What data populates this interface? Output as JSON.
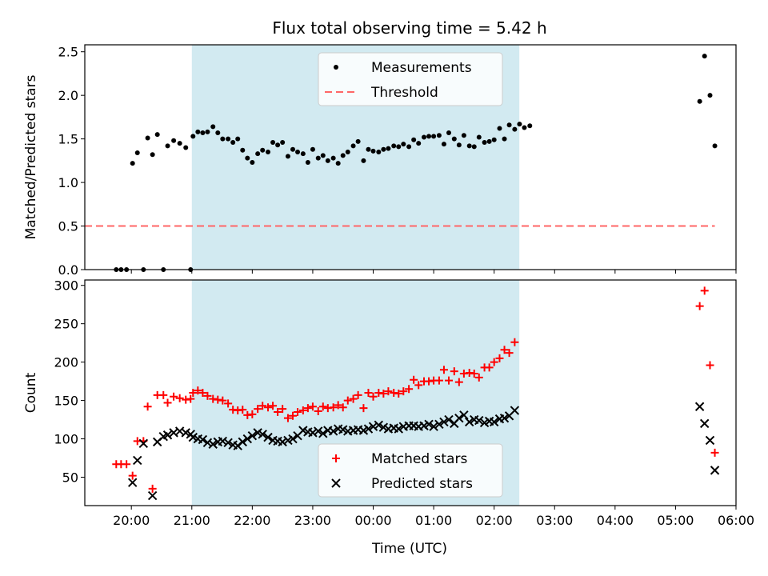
{
  "figure": {
    "title": "Flux total observing time = 5.42 h",
    "xlabel": "Time (UTC)"
  },
  "colors": {
    "shade": "#add8e6",
    "measurements": "#000000",
    "threshold": "#ff6666",
    "matched": "#ff0000",
    "predicted": "#000000"
  },
  "chart_data": [
    {
      "type": "scatter",
      "panel": "top",
      "title": "Flux total observing time = 5.42 h",
      "xlabel": "",
      "ylabel": "Matched/Predicted stars",
      "x_unit": "hours after 20:00 UTC",
      "xlim": [
        -0.77,
        10.0
      ],
      "ylim": [
        0,
        2.58
      ],
      "xticks": [
        "20:00",
        "21:00",
        "22:00",
        "23:00",
        "00:00",
        "01:00",
        "02:00",
        "03:00",
        "04:00",
        "05:00",
        "06:00"
      ],
      "yticks": [
        "0.0",
        "0.5",
        "1.0",
        "1.5",
        "2.0",
        "2.5"
      ],
      "ytick_values": [
        0,
        0.5,
        1.0,
        1.5,
        2.0,
        2.5
      ],
      "shaded_interval": [
        "21:00",
        "02:25"
      ],
      "legend_position": "upper-center",
      "series": [
        {
          "name": "Measurements",
          "marker": "dot",
          "points": [
            [
              -0.25,
              0
            ],
            [
              -0.17,
              0
            ],
            [
              -0.08,
              0
            ],
            [
              0.02,
              1.22
            ],
            [
              0.1,
              1.34
            ],
            [
              0.2,
              0
            ],
            [
              0.27,
              1.51
            ],
            [
              0.35,
              1.32
            ],
            [
              0.43,
              1.55
            ],
            [
              0.53,
              0
            ],
            [
              0.6,
              1.42
            ],
            [
              0.7,
              1.48
            ],
            [
              0.8,
              1.45
            ],
            [
              0.9,
              1.4
            ],
            [
              0.98,
              0
            ],
            [
              1.02,
              1.53
            ],
            [
              1.1,
              1.58
            ],
            [
              1.18,
              1.57
            ],
            [
              1.26,
              1.58
            ],
            [
              1.35,
              1.64
            ],
            [
              1.43,
              1.57
            ],
            [
              1.51,
              1.5
            ],
            [
              1.6,
              1.5
            ],
            [
              1.68,
              1.46
            ],
            [
              1.76,
              1.5
            ],
            [
              1.84,
              1.37
            ],
            [
              1.92,
              1.28
            ],
            [
              2.0,
              1.23
            ],
            [
              2.09,
              1.33
            ],
            [
              2.17,
              1.37
            ],
            [
              2.26,
              1.35
            ],
            [
              2.34,
              1.46
            ],
            [
              2.42,
              1.43
            ],
            [
              2.5,
              1.46
            ],
            [
              2.59,
              1.3
            ],
            [
              2.67,
              1.38
            ],
            [
              2.75,
              1.35
            ],
            [
              2.84,
              1.33
            ],
            [
              2.92,
              1.23
            ],
            [
              3.0,
              1.38
            ],
            [
              3.09,
              1.28
            ],
            [
              3.17,
              1.31
            ],
            [
              3.25,
              1.25
            ],
            [
              3.34,
              1.28
            ],
            [
              3.42,
              1.22
            ],
            [
              3.5,
              1.31
            ],
            [
              3.58,
              1.35
            ],
            [
              3.67,
              1.42
            ],
            [
              3.75,
              1.47
            ],
            [
              3.84,
              1.25
            ],
            [
              3.92,
              1.38
            ],
            [
              4.0,
              1.36
            ],
            [
              4.09,
              1.35
            ],
            [
              4.17,
              1.38
            ],
            [
              4.25,
              1.39
            ],
            [
              4.34,
              1.42
            ],
            [
              4.42,
              1.41
            ],
            [
              4.5,
              1.44
            ],
            [
              4.59,
              1.41
            ],
            [
              4.67,
              1.49
            ],
            [
              4.75,
              1.45
            ],
            [
              4.84,
              1.52
            ],
            [
              4.92,
              1.53
            ],
            [
              5.0,
              1.53
            ],
            [
              5.09,
              1.54
            ],
            [
              5.17,
              1.44
            ],
            [
              5.25,
              1.57
            ],
            [
              5.34,
              1.5
            ],
            [
              5.42,
              1.43
            ],
            [
              5.5,
              1.54
            ],
            [
              5.59,
              1.42
            ],
            [
              5.67,
              1.41
            ],
            [
              5.75,
              1.52
            ],
            [
              5.84,
              1.46
            ],
            [
              5.92,
              1.47
            ],
            [
              6.0,
              1.49
            ],
            [
              6.09,
              1.62
            ],
            [
              6.17,
              1.5
            ],
            [
              6.25,
              1.66
            ],
            [
              6.34,
              1.61
            ],
            [
              6.42,
              1.67
            ],
            [
              6.5,
              1.63
            ],
            [
              6.59,
              1.65
            ],
            [
              9.4,
              1.93
            ],
            [
              9.48,
              2.45
            ],
            [
              9.57,
              2.0
            ],
            [
              9.65,
              1.42
            ]
          ]
        },
        {
          "name": "Threshold",
          "marker": "dashed-line",
          "points": [
            [
              -0.77,
              0.5
            ],
            [
              9.65,
              0.5
            ]
          ]
        }
      ]
    },
    {
      "type": "scatter",
      "panel": "bottom",
      "xlabel": "Time (UTC)",
      "ylabel": "Count",
      "x_unit": "hours after 20:00 UTC",
      "xlim": [
        -0.77,
        10.0
      ],
      "ylim": [
        13,
        307
      ],
      "xticks": [
        "20:00",
        "21:00",
        "22:00",
        "23:00",
        "00:00",
        "01:00",
        "02:00",
        "03:00",
        "04:00",
        "05:00",
        "06:00"
      ],
      "yticks": [
        "50",
        "100",
        "150",
        "200",
        "250",
        "300"
      ],
      "ytick_values": [
        50,
        100,
        150,
        200,
        250,
        300
      ],
      "shaded_interval": [
        "21:00",
        "02:25"
      ],
      "legend_position": "lower-center",
      "series": [
        {
          "name": "Matched stars",
          "marker": "plus",
          "points": [
            [
              -0.25,
              67
            ],
            [
              -0.17,
              67
            ],
            [
              -0.08,
              67
            ],
            [
              0.02,
              52
            ],
            [
              0.1,
              97
            ],
            [
              0.2,
              97
            ],
            [
              0.27,
              142
            ],
            [
              0.35,
              35
            ],
            [
              0.43,
              157
            ],
            [
              0.53,
              157
            ],
            [
              0.6,
              147
            ],
            [
              0.7,
              155
            ],
            [
              0.8,
              153
            ],
            [
              0.9,
              151
            ],
            [
              0.98,
              152
            ],
            [
              1.02,
              160
            ],
            [
              1.1,
              163
            ],
            [
              1.18,
              160
            ],
            [
              1.26,
              156
            ],
            [
              1.35,
              152
            ],
            [
              1.43,
              151
            ],
            [
              1.51,
              150
            ],
            [
              1.6,
              146
            ],
            [
              1.68,
              138
            ],
            [
              1.76,
              137
            ],
            [
              1.84,
              138
            ],
            [
              1.92,
              131
            ],
            [
              2.0,
              132
            ],
            [
              2.09,
              139
            ],
            [
              2.17,
              143
            ],
            [
              2.26,
              141
            ],
            [
              2.34,
              143
            ],
            [
              2.42,
              135
            ],
            [
              2.5,
              139
            ],
            [
              2.59,
              127
            ],
            [
              2.67,
              130
            ],
            [
              2.75,
              135
            ],
            [
              2.84,
              137
            ],
            [
              2.92,
              140
            ],
            [
              3.0,
              142
            ],
            [
              3.09,
              136
            ],
            [
              3.17,
              142
            ],
            [
              3.25,
              140
            ],
            [
              3.34,
              141
            ],
            [
              3.42,
              144
            ],
            [
              3.5,
              141
            ],
            [
              3.58,
              150
            ],
            [
              3.67,
              152
            ],
            [
              3.75,
              157
            ],
            [
              3.84,
              140
            ],
            [
              3.92,
              160
            ],
            [
              4.0,
              155
            ],
            [
              4.09,
              160
            ],
            [
              4.17,
              159
            ],
            [
              4.25,
              162
            ],
            [
              4.34,
              160
            ],
            [
              4.42,
              159
            ],
            [
              4.5,
              162
            ],
            [
              4.59,
              165
            ],
            [
              4.67,
              177
            ],
            [
              4.75,
              170
            ],
            [
              4.84,
              175
            ],
            [
              4.92,
              175
            ],
            [
              5.0,
              176
            ],
            [
              5.09,
              176
            ],
            [
              5.17,
              190
            ],
            [
              5.25,
              176
            ],
            [
              5.34,
              188
            ],
            [
              5.42,
              174
            ],
            [
              5.5,
              185
            ],
            [
              5.59,
              186
            ],
            [
              5.67,
              185
            ],
            [
              5.75,
              180
            ],
            [
              5.84,
              193
            ],
            [
              5.92,
              193
            ],
            [
              6.0,
              200
            ],
            [
              6.09,
              205
            ],
            [
              6.17,
              216
            ],
            [
              6.25,
              212
            ],
            [
              6.34,
              226
            ],
            [
              9.4,
              273
            ],
            [
              9.48,
              293
            ],
            [
              9.57,
              196
            ],
            [
              9.65,
              82
            ]
          ]
        },
        {
          "name": "Predicted stars",
          "marker": "x",
          "points": [
            [
              0.02,
              43
            ],
            [
              0.1,
              72
            ],
            [
              0.2,
              94
            ],
            [
              0.35,
              26
            ],
            [
              0.43,
              96
            ],
            [
              0.53,
              103
            ],
            [
              0.6,
              105
            ],
            [
              0.7,
              108
            ],
            [
              0.8,
              110
            ],
            [
              0.9,
              108
            ],
            [
              0.98,
              106
            ],
            [
              1.02,
              102
            ],
            [
              1.1,
              100
            ],
            [
              1.18,
              99
            ],
            [
              1.26,
              95
            ],
            [
              1.35,
              93
            ],
            [
              1.43,
              96
            ],
            [
              1.51,
              97
            ],
            [
              1.6,
              95
            ],
            [
              1.68,
              92
            ],
            [
              1.76,
              91
            ],
            [
              1.84,
              96
            ],
            [
              1.92,
              100
            ],
            [
              2.0,
              104
            ],
            [
              2.09,
              108
            ],
            [
              2.17,
              106
            ],
            [
              2.26,
              102
            ],
            [
              2.34,
              98
            ],
            [
              2.42,
              97
            ],
            [
              2.5,
              96
            ],
            [
              2.59,
              98
            ],
            [
              2.67,
              100
            ],
            [
              2.75,
              104
            ],
            [
              2.84,
              111
            ],
            [
              2.92,
              109
            ],
            [
              3.0,
              108
            ],
            [
              3.09,
              110
            ],
            [
              3.17,
              107
            ],
            [
              3.25,
              111
            ],
            [
              3.34,
              110
            ],
            [
              3.42,
              113
            ],
            [
              3.5,
              112
            ],
            [
              3.58,
              110
            ],
            [
              3.67,
              111
            ],
            [
              3.75,
              112
            ],
            [
              3.84,
              111
            ],
            [
              3.92,
              113
            ],
            [
              4.0,
              116
            ],
            [
              4.09,
              118
            ],
            [
              4.17,
              115
            ],
            [
              4.25,
              113
            ],
            [
              4.34,
              114
            ],
            [
              4.42,
              113
            ],
            [
              4.5,
              116
            ],
            [
              4.59,
              117
            ],
            [
              4.67,
              117
            ],
            [
              4.75,
              116
            ],
            [
              4.84,
              117
            ],
            [
              4.92,
              119
            ],
            [
              5.0,
              116
            ],
            [
              5.09,
              119
            ],
            [
              5.17,
              122
            ],
            [
              5.25,
              125
            ],
            [
              5.34,
              120
            ],
            [
              5.42,
              127
            ],
            [
              5.5,
              131
            ],
            [
              5.59,
              122
            ],
            [
              5.67,
              125
            ],
            [
              5.75,
              124
            ],
            [
              5.84,
              121
            ],
            [
              5.92,
              123
            ],
            [
              6.0,
              122
            ],
            [
              6.09,
              126
            ],
            [
              6.17,
              127
            ],
            [
              6.25,
              130
            ],
            [
              6.34,
              137
            ],
            [
              9.4,
              142
            ],
            [
              9.48,
              120
            ],
            [
              9.57,
              98
            ],
            [
              9.65,
              59
            ]
          ]
        }
      ]
    }
  ]
}
